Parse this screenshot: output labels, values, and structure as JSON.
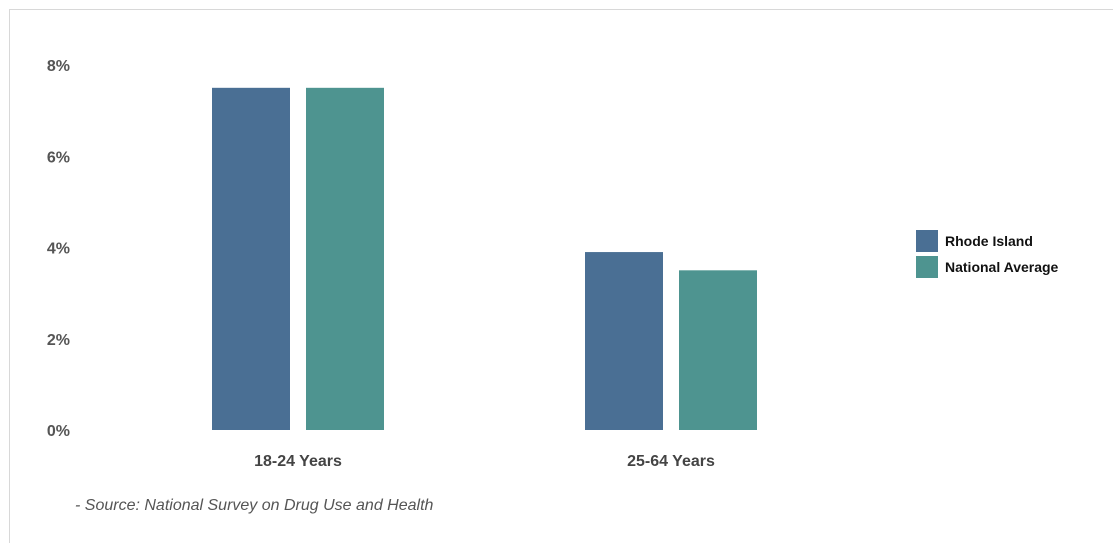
{
  "chart_data": {
    "type": "bar",
    "categories": [
      "18-24 Years",
      "25-64 Years"
    ],
    "series": [
      {
        "name": "Rhode Island",
        "values": [
          7.5,
          3.9
        ],
        "color": "#4a6f94"
      },
      {
        "name": "National Average",
        "values": [
          7.5,
          3.5
        ],
        "color": "#4e9490"
      }
    ],
    "yticks": [
      "0%",
      "2%",
      "4%",
      "6%",
      "8%"
    ],
    "ylim": [
      0,
      8
    ],
    "legend_position": "right",
    "grid": false
  },
  "source_note": "- Source: National Survey on Drug Use and Health"
}
